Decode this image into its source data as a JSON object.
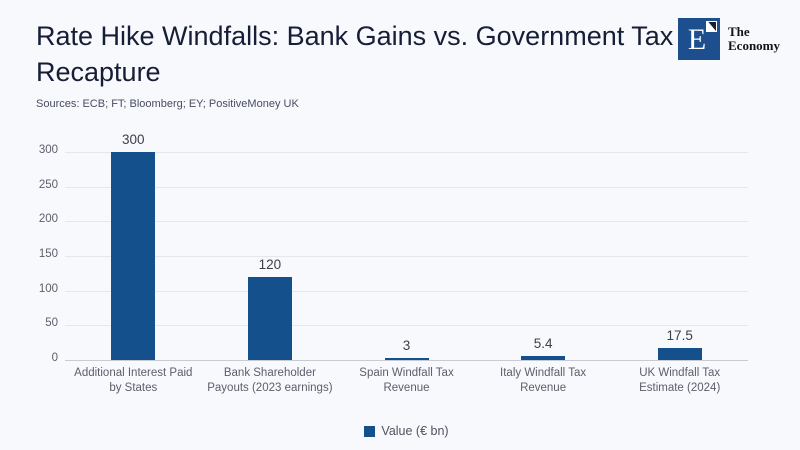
{
  "header": {
    "title": "Rate Hike Windfalls: Bank Gains vs. Government Tax Recapture",
    "sources": "Sources: ECB; FT; Bloomberg; EY; PositiveMoney UK",
    "logo": {
      "mark_letter": "E",
      "name_line1": "The",
      "name_line2": "Economy"
    }
  },
  "colors": {
    "background": "#f8f9fc",
    "bar": "#14518c",
    "title_text": "#161d36",
    "axis_text": "#5b5f6c",
    "gridline": "#e5e7ec",
    "axis_line": "#c7cbd3",
    "logo_blue": "#1d4f8f"
  },
  "chart_data": {
    "type": "bar",
    "title": "Rate Hike Windfalls: Bank Gains vs. Government Tax Recapture",
    "categories": [
      "Additional Interest Paid by States",
      "Bank Shareholder Payouts (2023 earnings)",
      "Spain Windfall Tax Revenue",
      "Italy Windfall Tax Revenue",
      "UK Windfall Tax Estimate (2024)"
    ],
    "category_lines": [
      [
        "Additional Interest Paid",
        "by States"
      ],
      [
        "Bank Shareholder",
        "Payouts (2023 earnings)"
      ],
      [
        "Spain Windfall Tax",
        "Revenue"
      ],
      [
        "Italy Windfall Tax",
        "Revenue"
      ],
      [
        "UK Windfall Tax",
        "Estimate (2024)"
      ]
    ],
    "series": [
      {
        "name": "Value (€ bn)",
        "values": [
          300,
          120,
          3,
          5.4,
          17.5
        ]
      }
    ],
    "value_labels": [
      "300",
      "120",
      "3",
      "5.4",
      "17.5"
    ],
    "xlabel": "",
    "ylabel": "",
    "ylim": [
      0,
      300
    ],
    "yticks": [
      0,
      50,
      100,
      150,
      200,
      250,
      300
    ],
    "grid": true,
    "legend_position": "bottom"
  },
  "legend": {
    "label": "Value (€ bn)"
  }
}
